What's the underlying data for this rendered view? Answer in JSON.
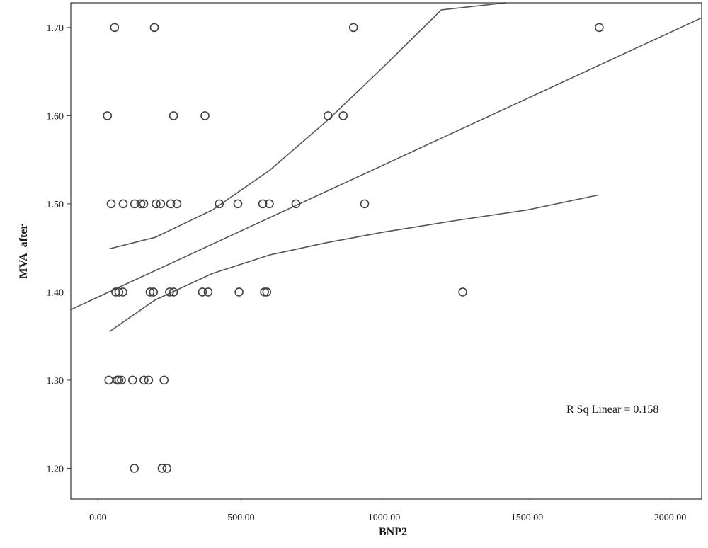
{
  "chart_data": {
    "type": "scatter",
    "title": "",
    "xlabel": "BNP2",
    "ylabel": "MVA_after",
    "xlim": [
      -95,
      2110
    ],
    "ylim": [
      1.165,
      1.728
    ],
    "x_ticks": [
      "0.00",
      "500.00",
      "1000.00",
      "1500.00",
      "2000.00"
    ],
    "x_tick_values": [
      0,
      500,
      1000,
      1500,
      2000
    ],
    "y_ticks": [
      "1.20",
      "1.30",
      "1.40",
      "1.50",
      "1.60",
      "1.70"
    ],
    "y_tick_values": [
      1.2,
      1.3,
      1.4,
      1.5,
      1.6,
      1.7
    ],
    "grid": false,
    "annotation": "R Sq Linear = 0.158",
    "points": [
      {
        "x": 58,
        "y": 1.7
      },
      {
        "x": 197,
        "y": 1.7
      },
      {
        "x": 893,
        "y": 1.7
      },
      {
        "x": 1752,
        "y": 1.7
      },
      {
        "x": 33,
        "y": 1.6
      },
      {
        "x": 264,
        "y": 1.6
      },
      {
        "x": 374,
        "y": 1.6
      },
      {
        "x": 804,
        "y": 1.6
      },
      {
        "x": 857,
        "y": 1.6
      },
      {
        "x": 46,
        "y": 1.5
      },
      {
        "x": 88,
        "y": 1.5
      },
      {
        "x": 128,
        "y": 1.5
      },
      {
        "x": 150,
        "y": 1.5
      },
      {
        "x": 160,
        "y": 1.5
      },
      {
        "x": 203,
        "y": 1.5
      },
      {
        "x": 219,
        "y": 1.5
      },
      {
        "x": 254,
        "y": 1.5
      },
      {
        "x": 276,
        "y": 1.5
      },
      {
        "x": 424,
        "y": 1.5
      },
      {
        "x": 489,
        "y": 1.5
      },
      {
        "x": 576,
        "y": 1.5
      },
      {
        "x": 599,
        "y": 1.5
      },
      {
        "x": 692,
        "y": 1.5
      },
      {
        "x": 932,
        "y": 1.5
      },
      {
        "x": 62,
        "y": 1.4
      },
      {
        "x": 73,
        "y": 1.4
      },
      {
        "x": 87,
        "y": 1.4
      },
      {
        "x": 182,
        "y": 1.4
      },
      {
        "x": 194,
        "y": 1.4
      },
      {
        "x": 250,
        "y": 1.4
      },
      {
        "x": 264,
        "y": 1.4
      },
      {
        "x": 365,
        "y": 1.4
      },
      {
        "x": 385,
        "y": 1.4
      },
      {
        "x": 493,
        "y": 1.4
      },
      {
        "x": 582,
        "y": 1.4
      },
      {
        "x": 590,
        "y": 1.4
      },
      {
        "x": 1275,
        "y": 1.4
      },
      {
        "x": 38,
        "y": 1.3
      },
      {
        "x": 67,
        "y": 1.3
      },
      {
        "x": 73,
        "y": 1.3
      },
      {
        "x": 82,
        "y": 1.3
      },
      {
        "x": 121,
        "y": 1.3
      },
      {
        "x": 161,
        "y": 1.3
      },
      {
        "x": 177,
        "y": 1.3
      },
      {
        "x": 231,
        "y": 1.3
      },
      {
        "x": 127,
        "y": 1.2
      },
      {
        "x": 224,
        "y": 1.2
      },
      {
        "x": 241,
        "y": 1.2
      }
    ],
    "fit": {
      "type": "linear",
      "line": [
        [
          -95,
          1.38
        ],
        [
          2110,
          1.711
        ]
      ],
      "upper_ci": [
        [
          40,
          1.449
        ],
        [
          200,
          1.462
        ],
        [
          400,
          1.493
        ],
        [
          600,
          1.538
        ],
        [
          800,
          1.594
        ],
        [
          1000,
          1.656
        ],
        [
          1200,
          1.72
        ],
        [
          1425,
          1.728
        ]
      ],
      "lower_ci": [
        [
          40,
          1.355
        ],
        [
          200,
          1.391
        ],
        [
          400,
          1.421
        ],
        [
          600,
          1.442
        ],
        [
          800,
          1.456
        ],
        [
          1000,
          1.468
        ],
        [
          1250,
          1.481
        ],
        [
          1500,
          1.493
        ],
        [
          1750,
          1.51
        ]
      ]
    }
  }
}
